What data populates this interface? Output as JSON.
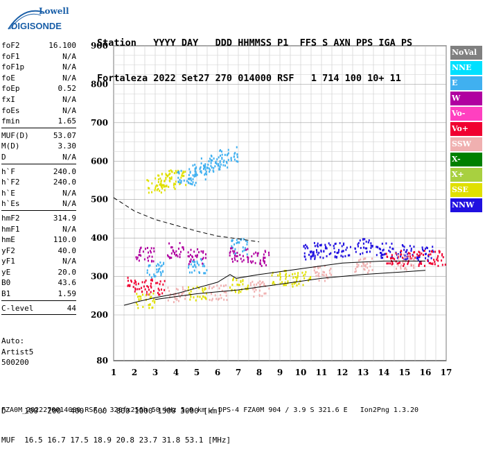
{
  "logo": {
    "line1": "Lowell",
    "line2": "DIGISONDE"
  },
  "header": {
    "row1": "Station   YYYY DAY   DDD HHMMSS P1  FFS S AXN PPS IGA PS",
    "row2": "Fortaleza 2022 Set27 270 014000 RSF   1 714 100 10+ 11"
  },
  "params": [
    {
      "group": [
        {
          "k": "foF2",
          "v": "16.100"
        },
        {
          "k": "foF1",
          "v": "N/A"
        },
        {
          "k": "foF1p",
          "v": "N/A"
        },
        {
          "k": "foE",
          "v": "N/A"
        },
        {
          "k": "foEp",
          "v": "0.52"
        },
        {
          "k": "fxI",
          "v": "N/A"
        },
        {
          "k": "foEs",
          "v": "N/A"
        },
        {
          "k": "fmin",
          "v": "1.65"
        }
      ]
    },
    {
      "group": [
        {
          "k": "MUF(D)",
          "v": "53.07"
        },
        {
          "k": "M(D)",
          "v": "3.30"
        },
        {
          "k": "D",
          "v": "N/A"
        }
      ]
    },
    {
      "group": [
        {
          "k": "h`F",
          "v": "240.0"
        },
        {
          "k": "h`F2",
          "v": "240.0"
        },
        {
          "k": "h`E",
          "v": "N/A"
        },
        {
          "k": "h`Es",
          "v": "N/A"
        }
      ]
    },
    {
      "group": [
        {
          "k": "hmF2",
          "v": "314.9"
        },
        {
          "k": "hmF1",
          "v": "N/A"
        },
        {
          "k": "hmE",
          "v": "110.0"
        },
        {
          "k": "yF2",
          "v": "40.0"
        },
        {
          "k": "yF1",
          "v": "N/A"
        },
        {
          "k": "yE",
          "v": "20.0"
        },
        {
          "k": "B0",
          "v": "43.6"
        },
        {
          "k": "B1",
          "v": "1.59"
        }
      ]
    },
    {
      "group": [
        {
          "k": "C-level",
          "v": "44"
        }
      ]
    }
  ],
  "auto": {
    "l1": "Auto:",
    "l2": "Artist5",
    "l3": "500200"
  },
  "legend": [
    {
      "label": "NoVal",
      "color": "#808080"
    },
    {
      "label": "NNE",
      "color": "#00e0ff"
    },
    {
      "label": "E",
      "color": "#40b0f0"
    },
    {
      "label": "W",
      "color": "#b000a0"
    },
    {
      "label": "Vo-",
      "color": "#ff40c0"
    },
    {
      "label": "Vo+",
      "color": "#f00030"
    },
    {
      "label": "SSW",
      "color": "#f0b0b0"
    },
    {
      "label": "X-",
      "color": "#008000"
    },
    {
      "label": "X+",
      "color": "#a8d040"
    },
    {
      "label": "SSE",
      "color": "#e0e000"
    },
    {
      "label": "NNW",
      "color": "#2010e0"
    }
  ],
  "bottom": {
    "d_row": "D    100  200  400  600  800 1000 1500 3000 [km]",
    "muf_row": "MUF  16.5 16.7 17.5 18.9 20.8 23.7 31.8 53.1 [MHz]"
  },
  "footer": "FZA0M_2022270014000.RSF / 320fx256h 50 kHz 5.0 km / DPS-4 FZA0M 904 / 3.9 S 321.6 E   Ion2Png 1.3.20",
  "chart_data": {
    "type": "scatter",
    "x_ticks": [
      1,
      2,
      3,
      4,
      5,
      6,
      7,
      8,
      9,
      10,
      11,
      12,
      13,
      14,
      15,
      16,
      17
    ],
    "y_ticks": [
      80,
      200,
      300,
      400,
      500,
      600,
      700,
      800,
      900
    ],
    "xlim": [
      1,
      17
    ],
    "y_scale": "ionogram (80-200 compressed)",
    "ylim": [
      80,
      900
    ],
    "grid": true,
    "legend_position": "right",
    "series": [
      {
        "color": "#2010e0",
        "points": [
          [
            10.5,
            365
          ],
          [
            11,
            370
          ],
          [
            12,
            372
          ],
          [
            13,
            380
          ],
          [
            14,
            370
          ],
          [
            15,
            365
          ],
          [
            16,
            360
          ]
        ]
      },
      {
        "color": "#f00030",
        "points": [
          [
            2.1,
            280
          ],
          [
            3,
            275
          ],
          [
            14.5,
            350
          ],
          [
            15.5,
            350
          ],
          [
            16.5,
            350
          ]
        ]
      },
      {
        "color": "#e0e000",
        "points": [
          [
            3,
            540
          ],
          [
            3.5,
            550
          ],
          [
            4,
            560
          ],
          [
            2.5,
            240
          ],
          [
            5,
            260
          ],
          [
            7,
            280
          ],
          [
            9,
            300
          ],
          [
            10,
            295
          ]
        ]
      },
      {
        "color": "#40b0f0",
        "points": [
          [
            4.5,
            560
          ],
          [
            5,
            575
          ],
          [
            5.5,
            590
          ],
          [
            6,
            600
          ],
          [
            6.5,
            620
          ],
          [
            3,
            320
          ],
          [
            5,
            330
          ],
          [
            7,
            380
          ]
        ]
      },
      {
        "color": "#b000a0",
        "points": [
          [
            2.5,
            360
          ],
          [
            4,
            370
          ],
          [
            5,
            355
          ],
          [
            7,
            360
          ],
          [
            8,
            350
          ]
        ]
      },
      {
        "color": "#f0b0b0",
        "points": [
          [
            4,
            255
          ],
          [
            6,
            260
          ],
          [
            8,
            270
          ],
          [
            11,
            310
          ],
          [
            13,
            330
          ],
          [
            15,
            340
          ]
        ]
      }
    ],
    "curves": [
      {
        "style": "dashed",
        "points": [
          [
            1,
            505
          ],
          [
            2,
            470
          ],
          [
            3,
            448
          ],
          [
            4,
            433
          ],
          [
            5,
            418
          ],
          [
            6,
            405
          ],
          [
            7,
            398
          ],
          [
            7.5,
            394
          ],
          [
            8,
            390
          ]
        ]
      },
      {
        "style": "solid",
        "points": [
          [
            1.5,
            225
          ],
          [
            2.2,
            235
          ],
          [
            3,
            245
          ],
          [
            4,
            255
          ],
          [
            5,
            270
          ],
          [
            6,
            285
          ],
          [
            6.6,
            305
          ],
          [
            6.9,
            295
          ],
          [
            8,
            305
          ],
          [
            10,
            320
          ],
          [
            12,
            335
          ],
          [
            14,
            340
          ],
          [
            16,
            340
          ]
        ]
      },
      {
        "style": "solid",
        "points": [
          [
            3,
            240
          ],
          [
            5,
            255
          ],
          [
            7,
            265
          ],
          [
            9,
            280
          ],
          [
            11,
            295
          ],
          [
            13,
            305
          ],
          [
            15,
            312
          ],
          [
            16,
            316
          ]
        ]
      }
    ]
  }
}
